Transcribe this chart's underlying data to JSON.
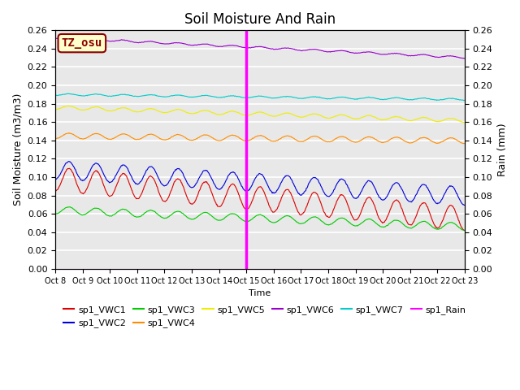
{
  "title": "Soil Moisture And Rain",
  "xlabel": "Time",
  "ylabel_left": "Soil Moisture (m3/m3)",
  "ylabel_right": "Rain (mm)",
  "ylim": [
    0.0,
    0.26
  ],
  "annotation_label": "TZ_osu",
  "annotation_color": "#8B0000",
  "annotation_bg": "#FFFFCC",
  "annotation_border": "#8B0000",
  "vertical_line_x": 7.0,
  "vertical_line_color": "magenta",
  "x_tick_labels": [
    "Oct 8",
    "Oct 9",
    "Oct 10",
    "Oct 11",
    "Oct 12",
    "Oct 13",
    "Oct 14",
    "Oct 15",
    "Oct 16",
    "Oct 17",
    "Oct 18",
    "Oct 19",
    "Oct 20",
    "Oct 21",
    "Oct 22",
    "Oct 23"
  ],
  "series": [
    {
      "key": "sp1_VWC1",
      "color": "#DD0000",
      "base": 0.098,
      "amplitude": 0.013,
      "trend": -0.00012,
      "noise": 0.002
    },
    {
      "key": "sp1_VWC2",
      "color": "#0000DD",
      "base": 0.108,
      "amplitude": 0.01,
      "trend": -8e-05,
      "noise": 0.002
    },
    {
      "key": "sp1_VWC3",
      "color": "#00CC00",
      "base": 0.064,
      "amplitude": 0.004,
      "trend": -5e-05,
      "noise": 0.001
    },
    {
      "key": "sp1_VWC4",
      "color": "#FF8C00",
      "base": 0.145,
      "amplitude": 0.003,
      "trend": -1.5e-05,
      "noise": 0.001
    },
    {
      "key": "sp1_VWC5",
      "color": "#EEEE00",
      "base": 0.176,
      "amplitude": 0.002,
      "trend": -4e-05,
      "noise": 0.001
    },
    {
      "key": "sp1_VWC6",
      "color": "#9900CC",
      "base": 0.252,
      "amplitude": 0.001,
      "trend": -6e-05,
      "noise": 0.001
    },
    {
      "key": "sp1_VWC7",
      "color": "#00CCCC",
      "base": 0.19,
      "amplitude": 0.001,
      "trend": -1.5e-05,
      "noise": 0.001
    }
  ],
  "legend_entries": [
    {
      "label": "sp1_VWC1",
      "color": "#DD0000"
    },
    {
      "label": "sp1_VWC2",
      "color": "#0000DD"
    },
    {
      "label": "sp1_VWC3",
      "color": "#00CC00"
    },
    {
      "label": "sp1_VWC4",
      "color": "#FF8C00"
    },
    {
      "label": "sp1_VWC5",
      "color": "#EEEE00"
    },
    {
      "label": "sp1_VWC6",
      "color": "#9900CC"
    },
    {
      "label": "sp1_VWC7",
      "color": "#00CCCC"
    },
    {
      "label": "sp1_Rain",
      "color": "magenta"
    }
  ],
  "background_color": "#E8E8E8",
  "grid_color": "#FFFFFF",
  "title_fontsize": 12
}
